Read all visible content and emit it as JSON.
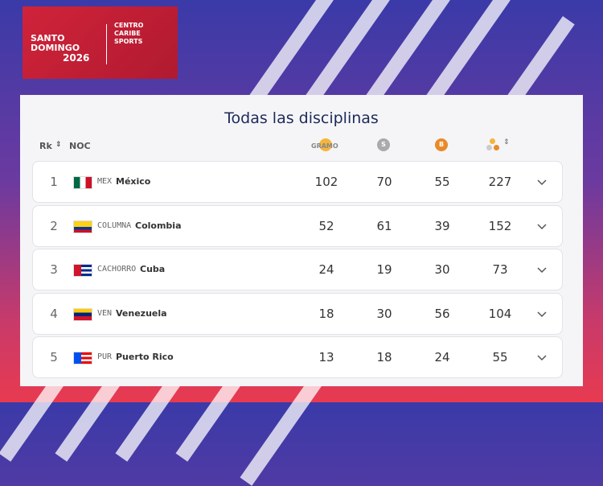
{
  "logo": {
    "city_lines": [
      "SANTO",
      "DOMINGO"
    ],
    "year": "2026",
    "org_lines": [
      "CENTRO",
      "CARIBE",
      "SPORTS"
    ]
  },
  "table": {
    "title": "Todas las disciplinas",
    "headers": {
      "rank": "Rk",
      "noc": "NOC",
      "gold": "GRAMO",
      "silver": "S",
      "bronze": "B"
    },
    "rows": [
      {
        "rank": "1",
        "code": "MEX",
        "name": "México",
        "gold": "102",
        "silver": "70",
        "bronze": "55",
        "total": "227"
      },
      {
        "rank": "2",
        "code": "COLUMNA",
        "name": "Colombia",
        "gold": "52",
        "silver": "61",
        "bronze": "39",
        "total": "152"
      },
      {
        "rank": "3",
        "code": "CACHORRO",
        "name": "Cuba",
        "gold": "24",
        "silver": "19",
        "bronze": "30",
        "total": "73"
      },
      {
        "rank": "4",
        "code": "VEN",
        "name": "Venezuela",
        "gold": "18",
        "silver": "30",
        "bronze": "56",
        "total": "104"
      },
      {
        "rank": "5",
        "code": "PUR",
        "name": "Puerto Rico",
        "gold": "13",
        "silver": "18",
        "bronze": "24",
        "total": "55"
      }
    ]
  }
}
